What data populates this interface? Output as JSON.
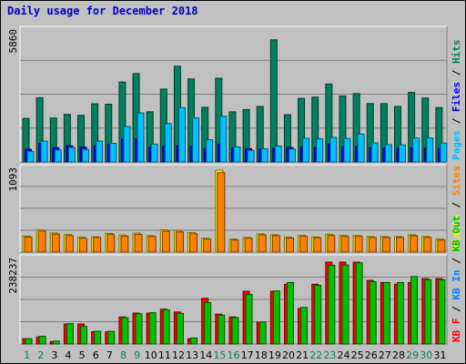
{
  "colors": {
    "background": "#c0c0c0",
    "title": "#0000c0",
    "pages": "#00c0ff",
    "files": "#0000ff",
    "hits": "#00805c",
    "visits": "#ffff00",
    "sites": "#ff8000",
    "kb_in": "#0080ff",
    "kb_out": "#00c000",
    "kb_f": "#ff0000"
  },
  "chart_data": [
    {
      "type": "bar",
      "title": "Daily usage for December 2018",
      "categories": [
        "1",
        "2",
        "3",
        "4",
        "5",
        "6",
        "7",
        "8",
        "9",
        "10",
        "11",
        "12",
        "13",
        "14",
        "15",
        "16",
        "17",
        "18",
        "19",
        "20",
        "21",
        "22",
        "23",
        "24",
        "25",
        "26",
        "27",
        "28",
        "29",
        "30",
        "31"
      ],
      "weekend_days": [
        "1",
        "2",
        "8",
        "9",
        "15",
        "16",
        "22",
        "23",
        "29",
        "30"
      ],
      "ymax_label": "5860",
      "ylim": [
        0,
        5860
      ],
      "legend": [
        "Pages",
        "Files",
        "Hits"
      ],
      "series": [
        {
          "name": "Hits",
          "values": [
            1960,
            2890,
            1980,
            2140,
            2100,
            2620,
            2600,
            3600,
            3980,
            2260,
            3280,
            4310,
            3740,
            2460,
            3770,
            2260,
            2360,
            2500,
            5500,
            2130,
            2860,
            2920,
            3510,
            2970,
            3080,
            2630,
            2630,
            2500,
            3130,
            2880,
            2450
          ]
        },
        {
          "name": "Files",
          "values": [
            570,
            830,
            640,
            730,
            670,
            730,
            780,
            1030,
            1050,
            670,
            700,
            740,
            700,
            600,
            800,
            630,
            600,
            580,
            600,
            650,
            680,
            650,
            810,
            680,
            690,
            650,
            620,
            610,
            640,
            620,
            610
          ]
        },
        {
          "name": "Pages",
          "values": [
            480,
            940,
            540,
            650,
            570,
            940,
            840,
            1600,
            2210,
            800,
            1730,
            2450,
            1990,
            1000,
            2060,
            680,
            520,
            590,
            720,
            580,
            1070,
            1040,
            1110,
            1060,
            1260,
            860,
            780,
            770,
            1080,
            1080,
            850
          ]
        }
      ]
    },
    {
      "type": "bar",
      "ymax_label": "1093",
      "ylim": [
        0,
        1093
      ],
      "legend": [
        "Visits",
        "Sites"
      ],
      "series": [
        {
          "name": "Visits",
          "values": [
            215,
            297,
            256,
            234,
            197,
            204,
            249,
            227,
            254,
            221,
            297,
            287,
            262,
            186,
            1093,
            174,
            197,
            244,
            231,
            202,
            223,
            201,
            238,
            222,
            222,
            207,
            207,
            207,
            231,
            209,
            174
          ]
        },
        {
          "name": "Sites",
          "values": [
            200,
            280,
            240,
            220,
            185,
            195,
            235,
            212,
            237,
            209,
            280,
            270,
            245,
            172,
            1060,
            162,
            184,
            230,
            220,
            188,
            210,
            190,
            222,
            210,
            210,
            195,
            195,
            195,
            218,
            196,
            162
          ]
        }
      ]
    },
    {
      "type": "bar",
      "ymax_label": "238237",
      "ylim": [
        0,
        238237
      ],
      "legend": [
        "KB F",
        "KB In",
        "KB Out"
      ],
      "series": [
        {
          "name": "KB F",
          "values": [
            15000,
            20000,
            7000,
            57000,
            57000,
            35000,
            35000,
            77000,
            88000,
            88000,
            99000,
            91000,
            15000,
            130000,
            85000,
            77000,
            150000,
            62000,
            150000,
            170000,
            101000,
            170000,
            233000,
            233000,
            233000,
            181000,
            175000,
            170000,
            175000,
            186000,
            186000
          ]
        },
        {
          "name": "KB In",
          "values": [
            0,
            0,
            0,
            0,
            0,
            0,
            0,
            0,
            0,
            0,
            0,
            0,
            0,
            0,
            0,
            0,
            0,
            0,
            0,
            0,
            0,
            0,
            0,
            0,
            0,
            0,
            0,
            0,
            0,
            0,
            0
          ]
        },
        {
          "name": "KB Out",
          "values": [
            15000,
            22000,
            8000,
            58000,
            50000,
            36000,
            36000,
            75000,
            86000,
            89000,
            97000,
            87000,
            17000,
            118000,
            82000,
            75000,
            141000,
            62000,
            151000,
            175000,
            104000,
            167000,
            224000,
            225000,
            231000,
            178000,
            175000,
            175000,
            192000,
            183000,
            183000
          ]
        }
      ]
    }
  ]
}
